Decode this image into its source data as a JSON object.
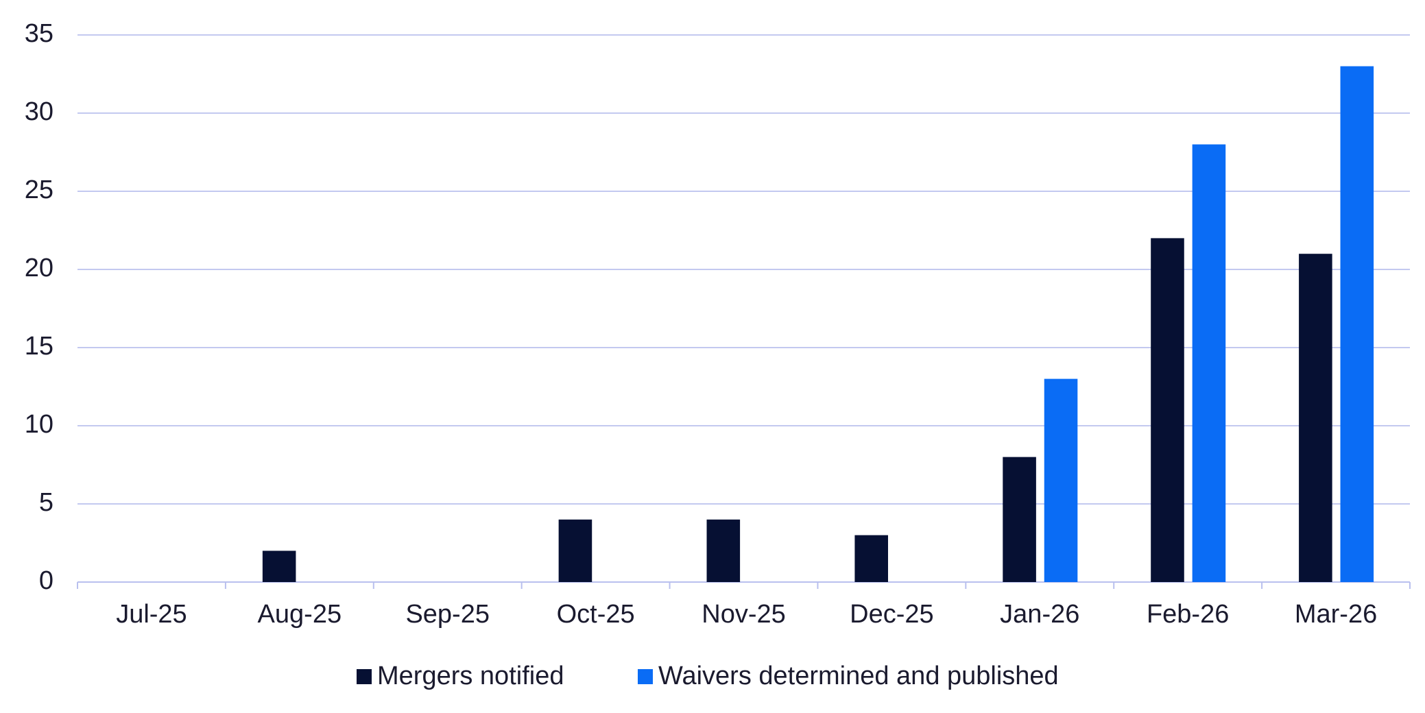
{
  "chart_data": {
    "type": "bar",
    "categories": [
      "Jul-25",
      "Aug-25",
      "Sep-25",
      "Oct-25",
      "Nov-25",
      "Dec-25",
      "Jan-26",
      "Feb-26",
      "Mar-26"
    ],
    "series": [
      {
        "name": "Mergers notified",
        "color": "#061033",
        "values": [
          0,
          2,
          0,
          4,
          4,
          3,
          8,
          22,
          21
        ]
      },
      {
        "name": "Waivers determined and published",
        "color": "#0a6cf5",
        "values": [
          0,
          0,
          0,
          0,
          0,
          0,
          13,
          28,
          33
        ]
      }
    ],
    "ylim": [
      0,
      35
    ],
    "yticks": [
      0,
      5,
      10,
      15,
      20,
      25,
      30,
      35
    ],
    "grid": true,
    "legend": "bottom"
  }
}
